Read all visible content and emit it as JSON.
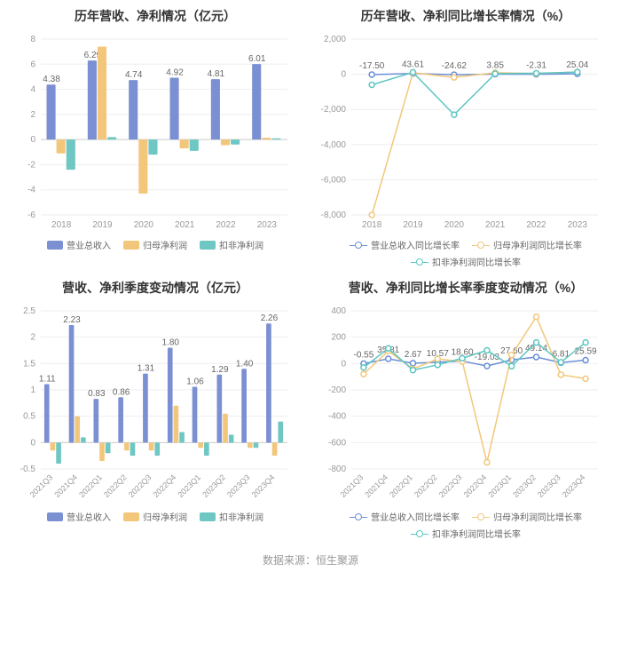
{
  "footer_text": "数据来源：恒生聚源",
  "colors": {
    "grid": "#eeeeee",
    "axis": "#cccccc",
    "text": "#999999",
    "value_label": "#666666",
    "series_blue": "#7b90d2",
    "series_orange": "#f3c77b",
    "series_teal": "#6fc7c3",
    "line_blue": "#6a8fd8",
    "line_orange": "#f3c77b",
    "line_teal": "#5cc6c2",
    "bg": "#ffffff"
  },
  "charts": {
    "tl": {
      "title": "历年营收、净利情况（亿元）",
      "type": "bar",
      "categories": [
        "2018",
        "2019",
        "2020",
        "2021",
        "2022",
        "2023"
      ],
      "series": [
        {
          "key": "rev",
          "label": "营业总收入",
          "color": "#7b90d2",
          "values": [
            4.38,
            6.29,
            4.74,
            4.92,
            4.81,
            6.01
          ],
          "show_value": true
        },
        {
          "key": "np",
          "label": "归母净利润",
          "color": "#f3c77b",
          "values": [
            -1.1,
            7.4,
            -4.3,
            -0.7,
            -0.45,
            0.15
          ],
          "show_value": false
        },
        {
          "key": "adj",
          "label": "扣非净利润",
          "color": "#6fc7c3",
          "values": [
            -2.4,
            0.2,
            -1.2,
            -0.9,
            -0.4,
            0.1
          ],
          "show_value": false
        }
      ],
      "y": {
        "min": -6,
        "max": 8,
        "step": 2
      },
      "bar_group_width": 0.72,
      "label_fontsize": 10
    },
    "tr": {
      "title": "历年营收、净利同比增长率情况（%）",
      "type": "line",
      "categories": [
        "2018",
        "2019",
        "2020",
        "2021",
        "2022",
        "2023"
      ],
      "series": [
        {
          "key": "rev_g",
          "label": "营业总收入同比增长率",
          "color": "#6a8fd8",
          "values": [
            -17.5,
            43.61,
            -24.62,
            3.85,
            -2.31,
            25.04
          ],
          "show_value": true
        },
        {
          "key": "np_g",
          "label": "归母净利润同比增长率",
          "color": "#f3c77b",
          "values": [
            -8000,
            90,
            -180,
            85,
            40,
            130
          ],
          "show_value": false
        },
        {
          "key": "adj_g",
          "label": "扣非净利润同比增长率",
          "color": "#5cc6c2",
          "values": [
            -600,
            110,
            -2300,
            30,
            55,
            120
          ],
          "show_value": false
        }
      ],
      "y": {
        "min": -8000,
        "max": 2000,
        "step": 2000
      },
      "label_fontsize": 10,
      "marker_radius": 3
    },
    "bl": {
      "title": "营收、净利季度变动情况（亿元）",
      "type": "bar",
      "categories": [
        "2021Q3",
        "2021Q4",
        "2022Q1",
        "2022Q2",
        "2022Q3",
        "2022Q4",
        "2023Q1",
        "2023Q2",
        "2023Q3",
        "2023Q4"
      ],
      "rotate_x": true,
      "series": [
        {
          "key": "rev",
          "label": "营业总收入",
          "color": "#7b90d2",
          "values": [
            1.11,
            2.23,
            0.83,
            0.86,
            1.31,
            1.8,
            1.06,
            1.29,
            1.4,
            2.26
          ],
          "show_value": true
        },
        {
          "key": "np",
          "label": "归母净利润",
          "color": "#f3c77b",
          "values": [
            -0.15,
            0.5,
            -0.35,
            -0.15,
            -0.15,
            0.7,
            -0.1,
            0.55,
            -0.1,
            -0.25
          ],
          "show_value": false
        },
        {
          "key": "adj",
          "label": "扣非净利润",
          "color": "#6fc7c3",
          "values": [
            -0.4,
            0.1,
            -0.2,
            -0.25,
            -0.25,
            0.2,
            -0.25,
            0.15,
            -0.1,
            0.4
          ],
          "show_value": false
        }
      ],
      "y": {
        "min": -0.5,
        "max": 2.5,
        "step": 0.5
      },
      "bar_group_width": 0.72,
      "label_fontsize": 10
    },
    "br": {
      "title": "营收、净利同比增长率季度变动情况（%）",
      "type": "line",
      "categories": [
        "2021Q3",
        "2021Q4",
        "2022Q1",
        "2022Q2",
        "2022Q3",
        "2022Q4",
        "2023Q1",
        "2023Q2",
        "2023Q3",
        "2023Q4"
      ],
      "rotate_x": true,
      "series": [
        {
          "key": "rev_g",
          "label": "营业总收入同比增长率",
          "color": "#6a8fd8",
          "values": [
            -0.55,
            35.81,
            2.67,
            10.57,
            18.6,
            -19.03,
            27.6,
            49.14,
            6.81,
            25.59
          ],
          "show_value": true
        },
        {
          "key": "np_g",
          "label": "归母净利润同比增长率",
          "color": "#f3c77b",
          "values": [
            -80,
            95,
            -40,
            35,
            15,
            -750,
            65,
            355,
            -85,
            -115
          ],
          "show_value": false
        },
        {
          "key": "adj_g",
          "label": "扣非净利润同比增长率",
          "color": "#5cc6c2",
          "values": [
            -30,
            115,
            -50,
            -10,
            40,
            100,
            -20,
            160,
            10,
            160
          ],
          "show_value": false
        }
      ],
      "y": {
        "min": -800,
        "max": 400,
        "step": 200
      },
      "label_fontsize": 10,
      "marker_radius": 3
    }
  }
}
